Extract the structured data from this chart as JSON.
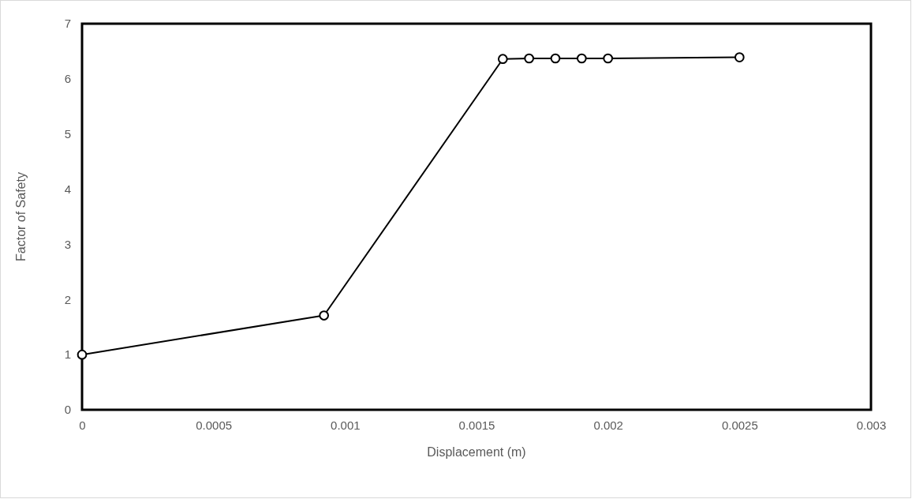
{
  "chart_data": {
    "type": "line",
    "xlabel": "Displacement (m)",
    "ylabel": "Factor of Safety",
    "x": [
      0,
      0.00092,
      0.0016,
      0.0017,
      0.0018,
      0.0019,
      0.002,
      0.0025
    ],
    "series": [
      {
        "color": "#000000",
        "values": [
          1,
          1.71,
          6.36,
          6.37,
          6.37,
          6.37,
          6.37,
          6.39
        ]
      }
    ],
    "xlim": [
      0,
      0.003
    ],
    "xticks": [
      0,
      0.0005,
      0.001,
      0.0015,
      0.002,
      0.0025,
      0.003
    ],
    "ylim": [
      0,
      7
    ],
    "yticks": [
      0,
      1,
      2,
      3,
      4,
      5,
      6,
      7
    ],
    "marker": "circle",
    "line_style": "solid",
    "grid": false
  }
}
